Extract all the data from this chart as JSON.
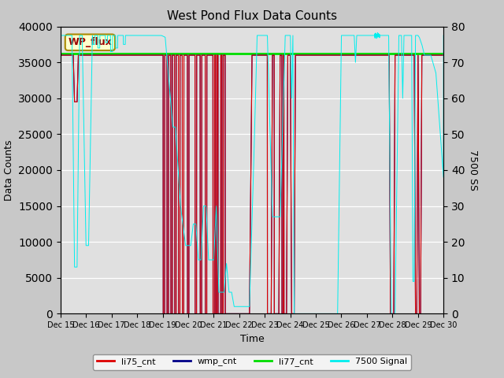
{
  "title": "West Pond Flux Data Counts",
  "xlabel": "Time",
  "ylabel_left": "Data Counts",
  "ylabel_right": "7500 SS",
  "ylim_left": [
    0,
    40000
  ],
  "ylim_right": [
    0,
    80
  ],
  "fig_facecolor": "#c8c8c8",
  "plot_bg_color": "#e0e0e0",
  "annotation_text": "WP_flux",
  "li77_cnt_value": 36200,
  "li77_color": "#00dd00",
  "li75_color": "#dd0000",
  "wmp_color": "#000088",
  "signal_color": "#00eeee",
  "x_start": 15,
  "x_end": 30,
  "x_ticks": [
    15,
    16,
    17,
    18,
    19,
    20,
    21,
    22,
    23,
    24,
    25,
    26,
    27,
    28,
    29,
    30
  ],
  "x_tick_labels": [
    "Dec 15",
    "Dec 16",
    "Dec 17",
    "Dec 18",
    "Dec 19",
    "Dec 20",
    "Dec 21",
    "Dec 22",
    "Dec 23",
    "Dec 24",
    "Dec 25",
    "Dec 26",
    "Dec 27",
    "Dec 28",
    "Dec 29",
    "Dec 30"
  ],
  "yticks_left": [
    0,
    5000,
    10000,
    15000,
    20000,
    25000,
    30000,
    35000,
    40000
  ],
  "yticks_right": [
    0,
    10,
    20,
    30,
    40,
    50,
    60,
    70,
    80
  ]
}
